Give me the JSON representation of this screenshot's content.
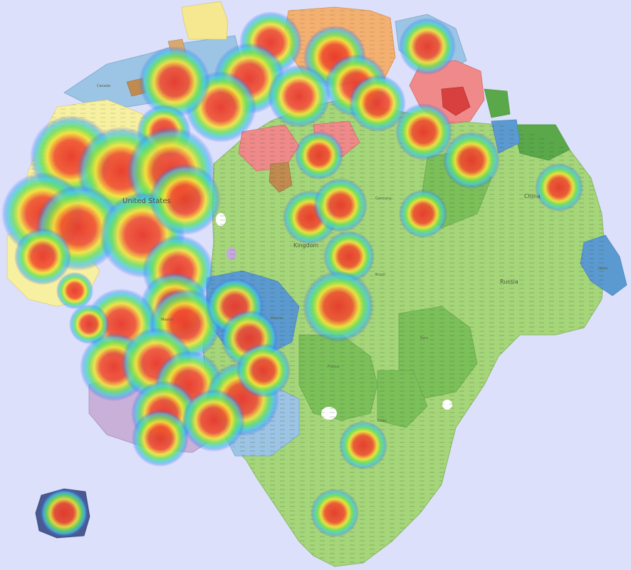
{
  "map": {
    "country_labels": [
      {
        "id": "usa",
        "text": "United States"
      },
      {
        "id": "russia",
        "text": "Russia"
      },
      {
        "id": "china",
        "text": "China"
      },
      {
        "id": "kingdom",
        "text": "Kingdom"
      },
      {
        "id": "brazil",
        "text": "Brazil"
      },
      {
        "id": "germany",
        "text": "Germany"
      },
      {
        "id": "poland",
        "text": "Poland"
      },
      {
        "id": "mexico",
        "text": "Mexico"
      },
      {
        "id": "canada",
        "text": "Canada"
      },
      {
        "id": "france",
        "text": "France"
      },
      {
        "id": "peru",
        "text": "Peru"
      },
      {
        "id": "chile",
        "text": "Chile"
      },
      {
        "id": "japan",
        "text": "Japan"
      }
    ],
    "heat_colors": {
      "hot": "#e8382a",
      "warm": "#f2e23a",
      "mid": "#6ee05a",
      "cool": "#40c8e8",
      "edge": "#3a4af0"
    },
    "region_colors": {
      "green_light": "#a6d67a",
      "green_mid": "#7cc05a",
      "green_dark": "#5aa84a",
      "blue_light": "#9cc4e4",
      "blue_mid": "#5b9ad0",
      "blue_dark": "#3a6aa8",
      "yellow": "#f6f0a0",
      "orange": "#f4b070",
      "pink": "#f08a8a",
      "red": "#d84040",
      "purple": "#c8b0d8",
      "brown": "#c08a50",
      "navy": "#4a5a90"
    }
  }
}
